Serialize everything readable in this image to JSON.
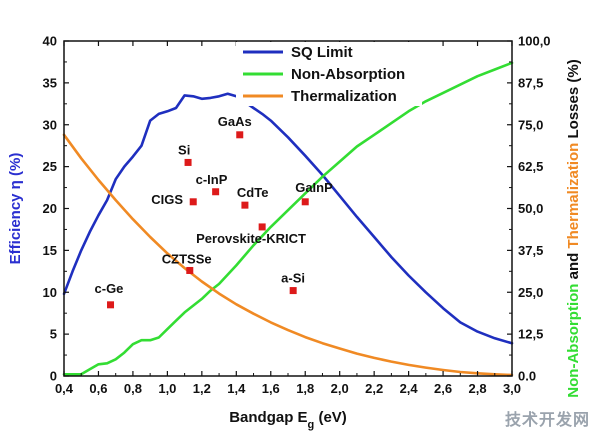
{
  "chart_data": {
    "type": "line",
    "xlabel": "Bandgap E",
    "xlabel_sub": "g",
    "xlabel_unit": " (eV)",
    "ylabel": "Efficiency η (%)",
    "y2label": {
      "parts": [
        {
          "text": "Non-Absorption",
          "color": "#33dd33"
        },
        {
          "text": " and ",
          "color": "#111111"
        },
        {
          "text": "Thermalization",
          "color": "#f08a24"
        },
        {
          "text": " Losses (%)",
          "color": "#111111"
        }
      ]
    },
    "xlim": [
      0.4,
      3.0
    ],
    "ylim": [
      0,
      40
    ],
    "y2lim": [
      0,
      100
    ],
    "xticks": [
      "0,4",
      "0,6",
      "0,8",
      "1,0",
      "1,2",
      "1,4",
      "1,6",
      "1,8",
      "2,0",
      "2,2",
      "2,4",
      "2,6",
      "2,8",
      "3,0"
    ],
    "yticks": [
      "0",
      "5",
      "10",
      "15",
      "20",
      "25",
      "30",
      "35",
      "40"
    ],
    "y2ticks": [
      "0.0",
      "12,5",
      "25,0",
      "37,5",
      "50,0",
      "62,5",
      "75,0",
      "87,5",
      "100,0"
    ],
    "legend_position": "top-right",
    "series": [
      {
        "name": "SQ Limit",
        "color": "#1f2fbf",
        "axis": "left",
        "x": [
          0.4,
          0.45,
          0.5,
          0.55,
          0.6,
          0.65,
          0.7,
          0.75,
          0.8,
          0.85,
          0.9,
          0.95,
          1.0,
          1.05,
          1.1,
          1.15,
          1.2,
          1.25,
          1.3,
          1.35,
          1.4,
          1.45,
          1.5,
          1.55,
          1.6,
          1.7,
          1.8,
          1.9,
          2.0,
          2.1,
          2.2,
          2.3,
          2.4,
          2.5,
          2.6,
          2.7,
          2.8,
          2.9,
          3.0
        ],
        "y": [
          9.8,
          12.5,
          15.0,
          17.2,
          19.2,
          21.0,
          23.5,
          25.0,
          26.2,
          27.5,
          30.5,
          31.3,
          31.6,
          32.0,
          33.5,
          33.4,
          33.1,
          33.2,
          33.4,
          33.7,
          33.4,
          32.7,
          32.0,
          31.3,
          30.5,
          28.5,
          26.3,
          24.0,
          21.5,
          19.0,
          16.6,
          14.2,
          12.0,
          10.0,
          8.1,
          6.4,
          5.3,
          4.5,
          3.9
        ]
      },
      {
        "name": "Non-Absorption",
        "color": "#33dd33",
        "axis": "right",
        "x": [
          0.4,
          0.5,
          0.55,
          0.6,
          0.65,
          0.7,
          0.75,
          0.8,
          0.85,
          0.9,
          0.95,
          1.0,
          1.05,
          1.1,
          1.15,
          1.2,
          1.25,
          1.3,
          1.4,
          1.5,
          1.6,
          1.7,
          1.8,
          1.9,
          2.0,
          2.1,
          2.2,
          2.3,
          2.4,
          2.5,
          2.6,
          2.7,
          2.8,
          2.9,
          3.0
        ],
        "y": [
          0.5,
          0.5,
          2.0,
          3.5,
          3.8,
          5.0,
          7.0,
          9.5,
          10.7,
          10.7,
          11.5,
          14.0,
          16.5,
          19.0,
          21.0,
          23.0,
          25.5,
          27.5,
          33.0,
          39.0,
          44.5,
          49.5,
          54.5,
          59.5,
          64.0,
          68.5,
          72.0,
          75.5,
          79.0,
          82.0,
          84.5,
          87.0,
          89.5,
          91.5,
          93.5
        ]
      },
      {
        "name": "Thermalization",
        "color": "#f08a24",
        "axis": "right",
        "x": [
          0.4,
          0.5,
          0.6,
          0.7,
          0.8,
          0.9,
          1.0,
          1.1,
          1.2,
          1.3,
          1.4,
          1.5,
          1.6,
          1.7,
          1.8,
          1.9,
          2.0,
          2.1,
          2.2,
          2.3,
          2.4,
          2.5,
          2.6,
          2.7,
          2.8,
          2.9,
          3.0
        ],
        "y": [
          72.0,
          65.0,
          58.5,
          52.5,
          46.8,
          41.5,
          36.6,
          32.2,
          28.2,
          24.6,
          21.4,
          18.6,
          16.0,
          13.7,
          11.6,
          9.8,
          8.2,
          6.7,
          5.4,
          4.3,
          3.3,
          2.5,
          1.8,
          1.2,
          0.8,
          0.5,
          0.3
        ]
      }
    ],
    "points": [
      {
        "label": "c-Ge",
        "x": 0.67,
        "y": 8.5,
        "label_dx": -16,
        "label_dy": -12
      },
      {
        "label": "Si",
        "x": 1.12,
        "y": 25.5,
        "label_dx": -10,
        "label_dy": -8
      },
      {
        "label": "GaAs",
        "x": 1.42,
        "y": 28.8,
        "label_dx": -22,
        "label_dy": -9
      },
      {
        "label": "c-InP",
        "x": 1.28,
        "y": 22.0,
        "label_dx": -20,
        "label_dy": -8
      },
      {
        "label": "CIGS",
        "x": 1.15,
        "y": 20.8,
        "label_dx": -42,
        "label_dy": 2
      },
      {
        "label": "CdTe",
        "x": 1.45,
        "y": 20.4,
        "label_dx": -8,
        "label_dy": -8
      },
      {
        "label": "GaInP",
        "x": 1.8,
        "y": 20.8,
        "label_dx": -10,
        "label_dy": -10
      },
      {
        "label": "Perovskite-KRICT",
        "x": 1.55,
        "y": 17.8,
        "label_dx": -66,
        "label_dy": 16
      },
      {
        "label": "CZTSSe",
        "x": 1.13,
        "y": 12.6,
        "label_dx": -28,
        "label_dy": -7
      },
      {
        "label": "a-Si",
        "x": 1.73,
        "y": 10.2,
        "label_dx": -12,
        "label_dy": -8
      }
    ],
    "point_color": "#dd1a1a"
  },
  "watermark": "技术开发网"
}
